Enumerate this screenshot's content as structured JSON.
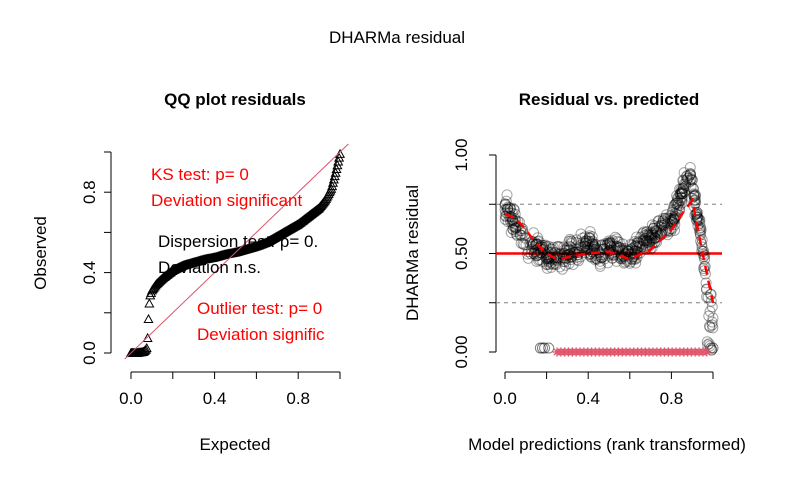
{
  "main_title": "DHARMa residual",
  "colors": {
    "red": "#ff0000",
    "qq_line": "#df536b",
    "outlier": "#df536b",
    "points": "#000000",
    "grid_dash": "#808080"
  },
  "chart_data": [
    {
      "type": "scatter",
      "title": "QQ plot residuals",
      "xlabel": "Expected",
      "ylabel": "Observed",
      "xlim": [
        0,
        1
      ],
      "ylim": [
        0,
        1
      ],
      "x_ticks": [
        "0.0",
        "0.4",
        "0.8"
      ],
      "y_ticks": [
        "0.0",
        "0.4",
        "0.8"
      ],
      "marker": "triangle",
      "reference_line": {
        "x": [
          0,
          1
        ],
        "y": [
          0,
          1
        ]
      },
      "series": [
        {
          "x": [
            0.0,
            0.03,
            0.06,
            0.075,
            0.08,
            0.085,
            0.09,
            0.1,
            0.12,
            0.15,
            0.2,
            0.25,
            0.3,
            0.35,
            0.4,
            0.45,
            0.5,
            0.55,
            0.6,
            0.65,
            0.7,
            0.75,
            0.8,
            0.85,
            0.9,
            0.93,
            0.96,
            0.98,
            1.0
          ],
          "y": [
            0.0,
            0.0,
            0.005,
            0.02,
            0.08,
            0.2,
            0.28,
            0.31,
            0.34,
            0.37,
            0.41,
            0.435,
            0.45,
            0.465,
            0.475,
            0.49,
            0.5,
            0.515,
            0.53,
            0.55,
            0.58,
            0.61,
            0.64,
            0.68,
            0.72,
            0.76,
            0.82,
            0.9,
            0.99
          ]
        }
      ],
      "annotations": [
        {
          "lines": [
            "KS test: p= 0",
            "Deviation  significant"
          ],
          "color": "red"
        },
        {
          "lines": [
            "Dispersion test: p= 0.",
            "Deviation  n.s."
          ],
          "color": "black"
        },
        {
          "lines": [
            "Outlier test: p= 0",
            "Deviation  signific"
          ],
          "color": "red"
        }
      ]
    },
    {
      "type": "scatter",
      "title": "Residual vs. predicted",
      "xlabel": "Model predictions (rank transformed)",
      "ylabel": "DHARMa residual",
      "xlim": [
        0,
        1
      ],
      "ylim": [
        0,
        1
      ],
      "x_ticks": [
        "0.0",
        "0.4",
        "0.8"
      ],
      "y_ticks": [
        "0.00",
        "0.50",
        "1.00"
      ],
      "marker": "open-circle",
      "hlines_dashed": [
        0.25,
        0.75
      ],
      "hline_solid": 0.5,
      "quantile_curve_x": [
        0.0,
        0.05,
        0.1,
        0.15,
        0.2,
        0.25,
        0.3,
        0.4,
        0.5,
        0.6,
        0.7,
        0.8,
        0.85,
        0.9,
        0.95,
        1.0
      ],
      "quantile_curve_y": [
        0.7,
        0.68,
        0.62,
        0.55,
        0.5,
        0.47,
        0.48,
        0.5,
        0.51,
        0.47,
        0.52,
        0.62,
        0.7,
        0.77,
        0.5,
        0.25
      ],
      "outlier_band": {
        "x_range": [
          0.25,
          0.97
        ],
        "y": 0.0
      },
      "series": [
        {
          "x": [
            0.0,
            0.02,
            0.05,
            0.08,
            0.1,
            0.15,
            0.2,
            0.25,
            0.3,
            0.35,
            0.4,
            0.45,
            0.5,
            0.55,
            0.6,
            0.65,
            0.7,
            0.75,
            0.8,
            0.85,
            0.88,
            0.9,
            0.92,
            0.95,
            0.97,
            0.99,
            1.0
          ],
          "y": [
            0.75,
            0.7,
            0.65,
            0.6,
            0.55,
            0.52,
            0.5,
            0.48,
            0.5,
            0.52,
            0.55,
            0.5,
            0.53,
            0.51,
            0.48,
            0.55,
            0.58,
            0.62,
            0.65,
            0.8,
            0.9,
            0.85,
            0.7,
            0.55,
            0.3,
            0.1,
            0.02
          ]
        }
      ]
    }
  ]
}
